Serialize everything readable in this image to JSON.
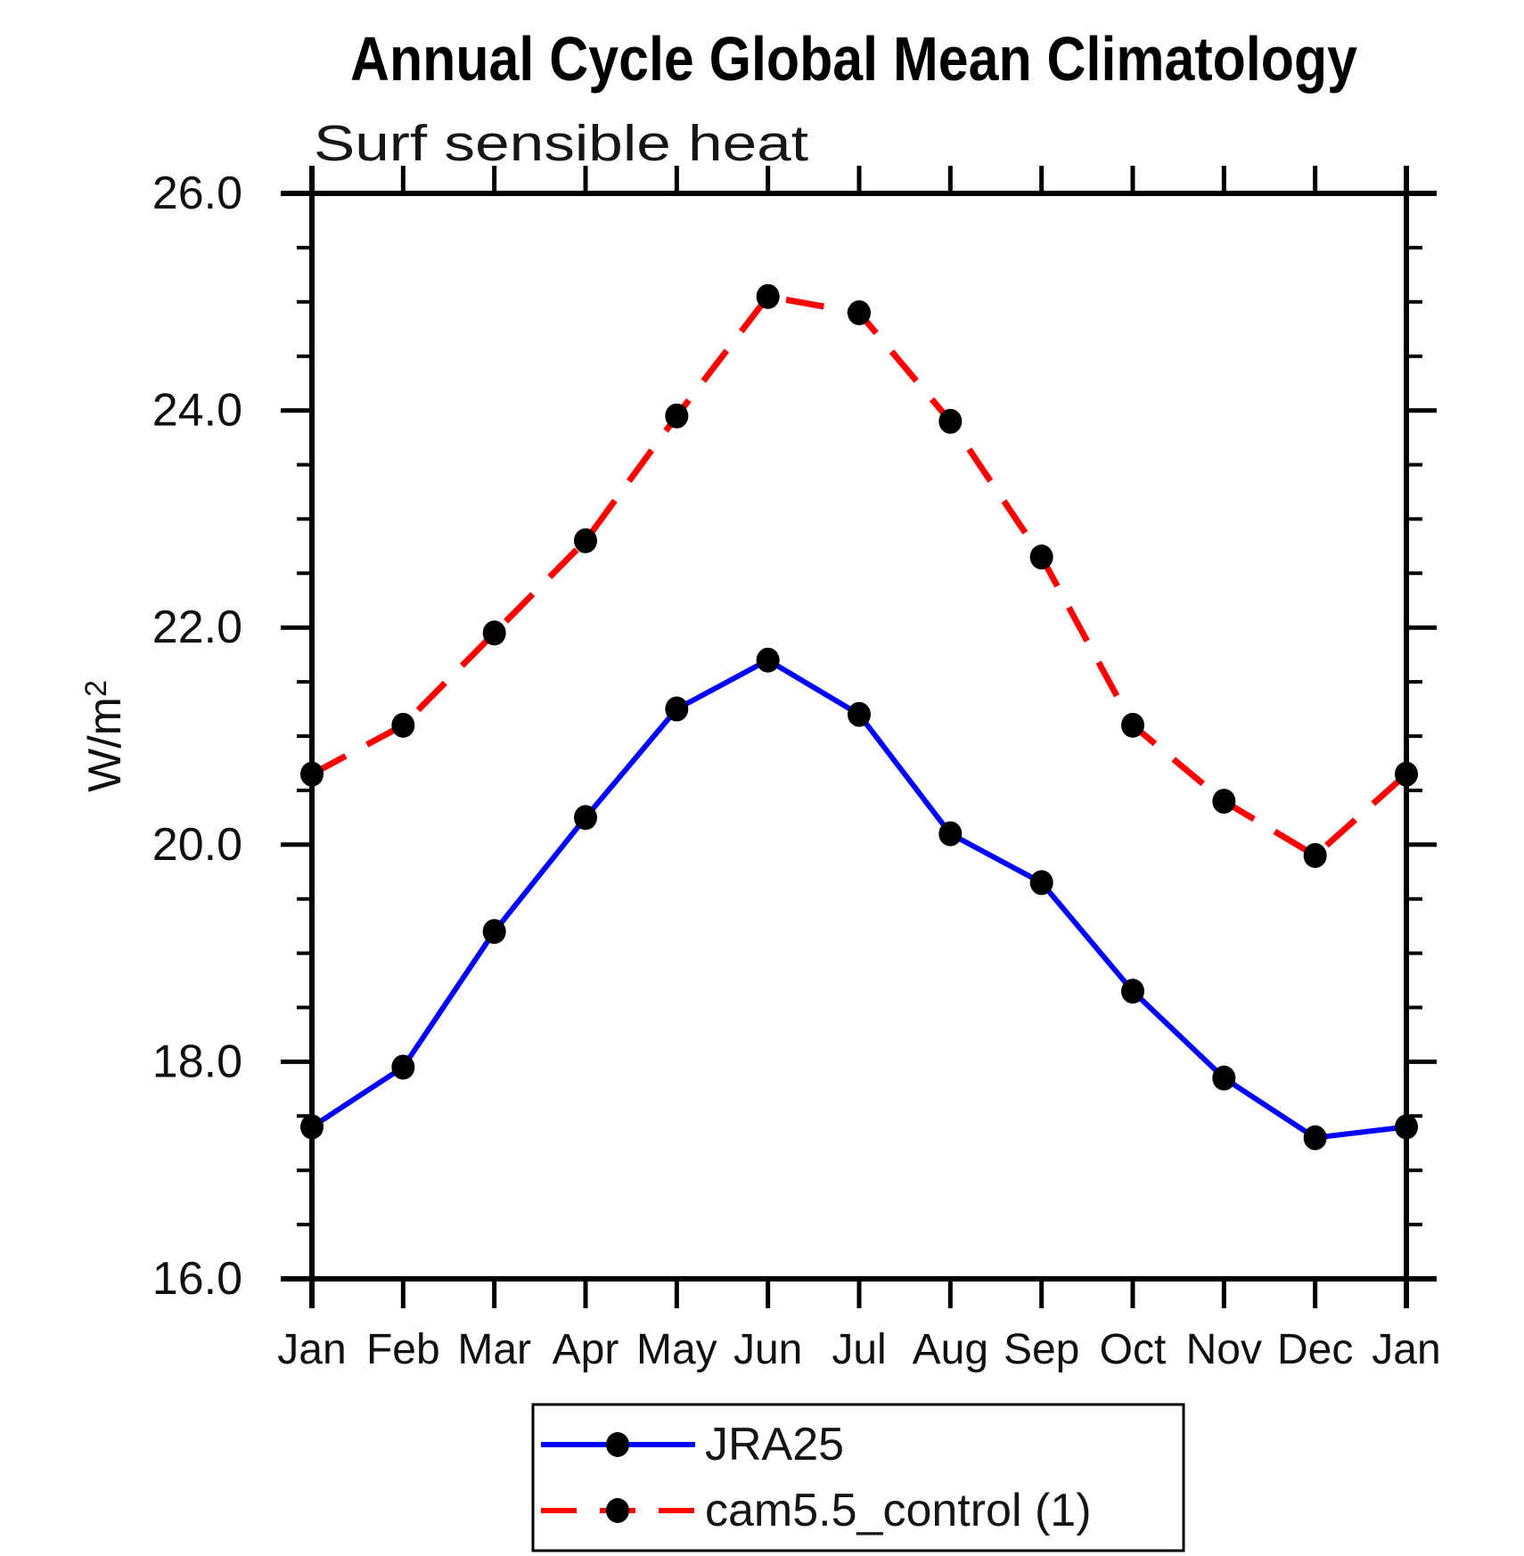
{
  "figure": {
    "title": "Annual Cycle Global Mean Climatology",
    "subtitle": "Surf sensible heat",
    "ylabel_base": "W/m",
    "ylabel_exponent": "2"
  },
  "chart_data": {
    "type": "line",
    "title": "Annual Cycle Global Mean Climatology",
    "subtitle": "Surf sensible heat",
    "ylabel": "W/m^2",
    "xlabel": "",
    "categories": [
      "Jan",
      "Feb",
      "Mar",
      "Apr",
      "May",
      "Jun",
      "Jul",
      "Aug",
      "Sep",
      "Oct",
      "Nov",
      "Dec",
      "Jan"
    ],
    "ylim": [
      16.0,
      26.0
    ],
    "ytick_values": [
      16,
      18,
      20,
      22,
      24,
      26
    ],
    "ytick_labels": [
      "16.0",
      "18.0",
      "20.0",
      "22.0",
      "24.0",
      "26.0"
    ],
    "minor_tick_step": 0.5,
    "grid": false,
    "legend_position": "bottom-center",
    "series": [
      {
        "name": "JRA25",
        "line_color": "#0000ff",
        "line_style": "solid",
        "marker": "filled-circle",
        "marker_color": "#000000",
        "values": [
          17.4,
          17.95,
          19.2,
          20.25,
          21.25,
          21.7,
          21.2,
          20.1,
          19.65,
          18.65,
          17.85,
          17.3,
          17.4
        ]
      },
      {
        "name": "cam5.5_control (1)",
        "line_color": "#ff0000",
        "line_style": "dashed",
        "marker": "filled-circle",
        "marker_color": "#000000",
        "values": [
          20.65,
          21.1,
          21.95,
          22.8,
          23.95,
          25.05,
          24.9,
          23.9,
          22.65,
          21.1,
          20.4,
          19.9,
          20.65
        ]
      }
    ]
  }
}
